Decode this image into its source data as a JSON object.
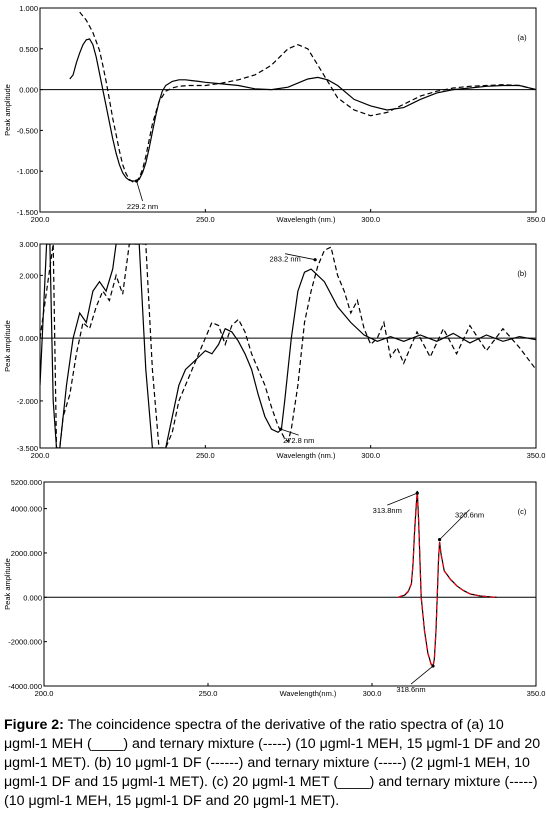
{
  "chart_data": [
    {
      "type": "line",
      "panel_label": "(a)",
      "xlabel": "Wavelength (nm.)",
      "ylabel": "Peak amplitude",
      "xlim": [
        200,
        350
      ],
      "ylim": [
        -1.5,
        1.0
      ],
      "x_ticks": [
        "200.0",
        "250.0",
        "300.0",
        "350.0"
      ],
      "y_ticks": [
        "1.000",
        "0.500",
        "0.000",
        "-0.500",
        "-1.000",
        "-1.500"
      ],
      "y_tick_values": [
        1.0,
        0.5,
        0.0,
        -0.5,
        -1.0,
        -1.5
      ],
      "annotations": [
        {
          "text": "229.2 nm",
          "x": 229.2,
          "y": -1.12
        }
      ],
      "series": [
        {
          "style": "solid",
          "color": "#000000",
          "x": [
            209,
            210,
            211,
            212,
            213,
            214,
            215,
            216,
            217,
            218,
            219,
            220,
            221,
            222,
            223,
            224,
            225,
            226,
            227,
            228,
            229,
            230,
            231,
            232,
            233,
            234,
            235,
            236,
            237,
            238,
            240,
            242,
            244,
            246,
            248,
            250,
            255,
            260,
            265,
            270,
            275,
            278,
            281,
            284,
            287,
            290,
            295,
            300,
            305,
            310,
            315,
            320,
            325,
            330,
            335,
            340,
            345,
            350
          ],
          "y": [
            0.13,
            0.18,
            0.33,
            0.45,
            0.55,
            0.61,
            0.62,
            0.55,
            0.4,
            0.2,
            0.0,
            -0.2,
            -0.4,
            -0.6,
            -0.78,
            -0.92,
            -1.02,
            -1.08,
            -1.11,
            -1.12,
            -1.12,
            -1.1,
            -1.02,
            -0.9,
            -0.72,
            -0.52,
            -0.32,
            -0.15,
            -0.02,
            0.05,
            0.1,
            0.12,
            0.12,
            0.11,
            0.1,
            0.09,
            0.07,
            0.05,
            0.01,
            0.0,
            0.03,
            0.08,
            0.13,
            0.15,
            0.12,
            0.05,
            -0.12,
            -0.2,
            -0.25,
            -0.22,
            -0.12,
            -0.04,
            0.0,
            0.02,
            0.04,
            0.05,
            0.05,
            0.0
          ]
        },
        {
          "style": "dashed",
          "color": "#000000",
          "x": [
            212,
            214,
            216,
            218,
            219,
            220,
            221,
            222,
            223,
            224,
            225,
            226,
            227,
            228,
            229,
            230,
            231,
            232,
            233,
            234,
            236,
            238,
            240,
            242,
            245,
            250,
            255,
            260,
            265,
            268,
            270,
            272,
            275,
            278,
            281,
            284,
            287,
            290,
            295,
            300,
            305,
            310,
            315,
            320,
            325,
            330,
            335,
            340,
            345,
            350
          ],
          "y": [
            0.95,
            0.85,
            0.7,
            0.48,
            0.3,
            0.1,
            -0.12,
            -0.35,
            -0.55,
            -0.75,
            -0.92,
            -1.03,
            -1.1,
            -1.13,
            -1.13,
            -1.08,
            -0.98,
            -0.82,
            -0.62,
            -0.42,
            -0.15,
            -0.02,
            0.02,
            0.04,
            0.05,
            0.05,
            0.08,
            0.12,
            0.18,
            0.25,
            0.3,
            0.38,
            0.5,
            0.55,
            0.5,
            0.3,
            0.1,
            -0.1,
            -0.25,
            -0.32,
            -0.28,
            -0.18,
            -0.08,
            -0.02,
            0.02,
            0.04,
            0.05,
            0.06,
            0.05,
            0.0
          ]
        }
      ]
    },
    {
      "type": "line",
      "panel_label": "(b)",
      "xlabel": "Wavelength (nm.)",
      "ylabel": "Peak amplitude",
      "xlim": [
        200,
        350
      ],
      "ylim": [
        -3.5,
        3.0
      ],
      "x_ticks": [
        "200.0",
        "250.0",
        "300.0",
        "350.0"
      ],
      "y_ticks": [
        "3.000",
        "2.000",
        "0.000",
        "-2.000",
        "-3.500"
      ],
      "y_tick_values": [
        3.0,
        2.0,
        0.0,
        -2.0,
        -3.5
      ],
      "annotations": [
        {
          "text": "283.2 nm",
          "x": 283.2,
          "y": 2.5
        },
        {
          "text": "272.8 nm",
          "x": 272.8,
          "y": -2.9
        }
      ],
      "series": [
        {
          "style": "solid",
          "color": "#000000",
          "x": [
            200,
            202,
            203,
            204,
            205,
            206,
            208,
            210,
            212,
            214,
            216,
            218,
            220,
            222,
            223,
            224,
            225,
            228,
            229,
            230,
            232,
            234,
            236,
            238,
            240,
            242,
            244,
            246,
            248,
            250,
            252,
            254,
            256,
            258,
            260,
            262,
            264,
            266,
            268,
            270,
            272,
            273,
            274,
            276,
            278,
            280,
            282,
            284,
            286,
            290,
            294,
            298,
            302,
            306,
            310,
            315,
            320,
            325,
            330,
            335,
            340,
            345,
            350
          ],
          "y": [
            -1.5,
            3.0,
            3.0,
            -2.0,
            -3.5,
            -3.5,
            -1.5,
            0.0,
            0.8,
            0.5,
            1.5,
            1.8,
            1.5,
            2.2,
            3.0,
            3.0,
            3.0,
            3.0,
            3.0,
            3.0,
            -1.0,
            -3.5,
            -3.5,
            -3.5,
            -2.5,
            -1.5,
            -1.0,
            -0.8,
            -0.6,
            -0.4,
            -0.5,
            -0.2,
            0.3,
            0.2,
            -0.1,
            -0.5,
            -1.0,
            -1.8,
            -2.5,
            -2.9,
            -3.0,
            -2.9,
            -2.0,
            0.0,
            1.5,
            2.1,
            2.2,
            2.0,
            1.8,
            1.0,
            0.5,
            0.1,
            -0.1,
            0.05,
            -0.1,
            0.1,
            -0.1,
            0.15,
            -0.15,
            0.1,
            -0.1,
            0.05,
            -0.05
          ]
        },
        {
          "style": "dashed",
          "color": "#000000",
          "x": [
            200,
            204,
            205,
            206,
            207,
            209,
            211,
            213,
            215,
            217,
            219,
            221,
            223,
            225,
            227,
            229,
            231,
            232,
            234,
            236,
            238,
            240,
            242,
            244,
            246,
            248,
            250,
            252,
            254,
            256,
            258,
            260,
            262,
            264,
            266,
            268,
            270,
            272,
            274,
            275,
            276,
            278,
            280,
            282,
            284,
            286,
            288,
            290,
            292,
            294,
            296,
            298,
            300,
            302,
            304,
            306,
            308,
            310,
            314,
            318,
            322,
            326,
            330,
            335,
            340,
            345,
            350
          ],
          "y": [
            0.0,
            3.0,
            -3.5,
            -3.5,
            -2.5,
            -1.8,
            -0.5,
            0.5,
            0.3,
            1.0,
            1.5,
            1.2,
            2.0,
            1.4,
            3.0,
            3.0,
            3.0,
            3.0,
            -1.0,
            -3.5,
            -3.5,
            -3.0,
            -2.0,
            -1.5,
            -1.0,
            -0.5,
            0.0,
            0.5,
            0.4,
            -0.2,
            0.4,
            0.6,
            0.2,
            -0.5,
            -1.0,
            -1.5,
            -2.2,
            -2.8,
            -3.2,
            -3.3,
            -2.9,
            -1.5,
            0.5,
            1.5,
            2.3,
            2.8,
            2.9,
            2.0,
            1.5,
            0.8,
            1.2,
            0.3,
            -0.2,
            0.0,
            0.5,
            -0.6,
            -0.3,
            -0.8,
            0.2,
            -0.6,
            0.3,
            -0.5,
            0.4,
            -0.4,
            0.3,
            -0.3,
            -1.0
          ]
        }
      ]
    },
    {
      "type": "line",
      "panel_label": "(c)",
      "xlabel": "Wavelength(nm.)",
      "ylabel": "Peak amplitude",
      "xlim": [
        200,
        350
      ],
      "ylim": [
        -4000,
        5200
      ],
      "x_ticks": [
        "200.0",
        "250.0",
        "300.0",
        "350.0"
      ],
      "y_ticks": [
        "5200.000",
        "4000.000",
        "2000.000",
        "0.000",
        "-2000.000",
        "-4000.000"
      ],
      "y_tick_values": [
        5200,
        4000,
        2000,
        0,
        -2000,
        -4000
      ],
      "annotations": [
        {
          "text": "313.8nm",
          "x": 313.8,
          "y": 4700
        },
        {
          "text": "320.6nm",
          "x": 320.6,
          "y": 2600
        },
        {
          "text": "318.6nm",
          "x": 318.6,
          "y": -3100
        }
      ],
      "series": [
        {
          "style": "solid",
          "color": "#000000",
          "x": [
            308,
            310,
            311,
            312,
            312.5,
            313,
            313.5,
            313.8,
            314.2,
            315,
            316,
            317,
            318,
            318.6,
            319,
            319.5,
            320,
            320.3,
            320.6,
            321,
            322,
            324,
            326,
            328,
            330,
            333,
            336,
            338
          ],
          "y": [
            0,
            100,
            250,
            600,
            1500,
            3000,
            4200,
            4800,
            3500,
            0,
            -1500,
            -2500,
            -3000,
            -3100,
            -2800,
            -1500,
            500,
            1800,
            2500,
            2000,
            1200,
            800,
            500,
            300,
            150,
            60,
            20,
            0
          ]
        },
        {
          "style": "dashed",
          "color": "#e8000b",
          "x": [
            308,
            310,
            311,
            312,
            312.5,
            313,
            313.5,
            313.8,
            314.2,
            315,
            316,
            317,
            318,
            318.6,
            319,
            319.5,
            320,
            320.3,
            320.6,
            321,
            322,
            324,
            326,
            328,
            330,
            333,
            336,
            338
          ],
          "y": [
            0,
            120,
            270,
            620,
            1480,
            2950,
            4150,
            4720,
            3450,
            0,
            -1520,
            -2520,
            -3020,
            -3120,
            -2820,
            -1520,
            480,
            1780,
            2480,
            1980,
            1190,
            790,
            490,
            295,
            148,
            58,
            18,
            0
          ]
        }
      ]
    }
  ],
  "caption": {
    "figure_label": "Figure 2:",
    "text": "The coincidence spectra of the derivative of the ratio spectra of (a) 10 μgml-1 MEH (____) and ternary mixture (-----) (10 μgml-1 MEH, 15 μgml-1 DF and 20 μgml-1 MET). (b) 10 μgml-1 DF (------) and ternary mixture (-----) (2 μgml-1 MEH, 10 μgml-1 DF and 15 μgml-1 MET). (c) 20 μgml-1 MET (____) and ternary mixture (-----) (10 μgml-1 MEH, 15 μgml-1 DF and 20 μgml-1 MET)."
  }
}
